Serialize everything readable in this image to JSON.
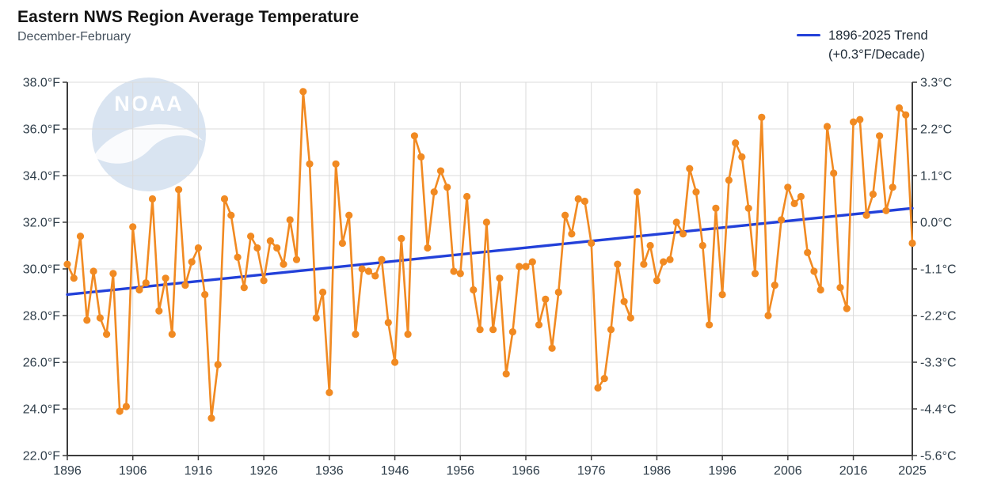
{
  "header": {
    "title": "Eastern NWS Region Average Temperature",
    "subtitle": "December-February"
  },
  "legend": {
    "line1": "1896-2025 Trend",
    "line2": "(+0.3°F/Decade)"
  },
  "watermark": {
    "text": "NOAA",
    "circle_color": "#D9E4F1",
    "mark_color": "#FFFFFF"
  },
  "colors": {
    "series_orange": "#F18A22",
    "trend_blue": "#2240D9",
    "gridline": "#DBDBDB",
    "axis": "#3C3C3C",
    "tick_label": "#2E3D49",
    "background": "#FFFFFF"
  },
  "chart_data": {
    "type": "line",
    "title": "Eastern NWS Region Average Temperature",
    "subtitle": "December-February",
    "grid": true,
    "legend_position": "top-right",
    "y_axis_left": {
      "unit": "°F",
      "min": 22.0,
      "max": 38.0,
      "tick_step": 2.0,
      "ticks": [
        {
          "f": 38,
          "label": "38.0°F"
        },
        {
          "f": 36,
          "label": "36.0°F"
        },
        {
          "f": 34,
          "label": "34.0°F"
        },
        {
          "f": 32,
          "label": "32.0°F"
        },
        {
          "f": 30,
          "label": "30.0°F"
        },
        {
          "f": 28,
          "label": "28.0°F"
        },
        {
          "f": 26,
          "label": "26.0°F"
        },
        {
          "f": 24,
          "label": "24.0°F"
        },
        {
          "f": 22,
          "label": "22.0°F"
        }
      ]
    },
    "y_axis_right": {
      "unit": "°C",
      "ticks": [
        {
          "f": 38,
          "label": "3.3°C"
        },
        {
          "f": 36,
          "label": "2.2°C"
        },
        {
          "f": 34,
          "label": "1.1°C"
        },
        {
          "f": 32,
          "label": "0.0°C"
        },
        {
          "f": 30,
          "label": "-1.1°C"
        },
        {
          "f": 28,
          "label": "-2.2°C"
        },
        {
          "f": 26,
          "label": "-3.3°C"
        },
        {
          "f": 24,
          "label": "-4.4°C"
        },
        {
          "f": 22,
          "label": "-5.6°C"
        }
      ]
    },
    "x_axis": {
      "min": 1896,
      "max": 2025,
      "ticks": [
        1896,
        1906,
        1916,
        1926,
        1936,
        1946,
        1956,
        1966,
        1976,
        1986,
        1996,
        2006,
        2016,
        2025
      ]
    },
    "series": {
      "name": "Average Temperature (°F)",
      "color": "#F18A22",
      "start_year": 1896,
      "end_year": 2025,
      "values": [
        30.2,
        29.6,
        31.4,
        27.8,
        29.9,
        27.9,
        27.2,
        29.8,
        23.9,
        24.1,
        31.8,
        29.1,
        29.4,
        33.0,
        28.2,
        29.6,
        27.2,
        33.4,
        29.3,
        30.3,
        30.9,
        28.9,
        23.6,
        25.9,
        33.0,
        32.3,
        30.5,
        29.2,
        31.4,
        30.9,
        29.5,
        31.2,
        30.9,
        30.2,
        32.1,
        30.4,
        37.6,
        34.5,
        27.9,
        29.0,
        24.7,
        34.5,
        31.1,
        32.3,
        27.2,
        30.0,
        29.9,
        29.7,
        30.4,
        27.7,
        26.0,
        31.3,
        27.2,
        35.7,
        34.8,
        30.9,
        33.3,
        34.2,
        33.5,
        29.9,
        29.8,
        33.1,
        29.1,
        27.4,
        32.0,
        27.4,
        29.6,
        25.5,
        27.3,
        30.1,
        30.1,
        30.3,
        27.6,
        28.7,
        26.6,
        29.0,
        32.3,
        31.5,
        33.0,
        32.9,
        31.1,
        24.9,
        25.3,
        27.4,
        30.2,
        28.6,
        27.9,
        33.3,
        30.2,
        31.0,
        29.5,
        30.3,
        30.4,
        32.0,
        31.5,
        34.3,
        33.3,
        31.0,
        27.6,
        32.6,
        28.9,
        33.8,
        35.4,
        34.8,
        32.6,
        29.8,
        36.5,
        28.0,
        29.3,
        32.1,
        33.5,
        32.8,
        33.1,
        30.7,
        29.9,
        29.1,
        36.1,
        34.1,
        29.2,
        28.3,
        36.3,
        36.4,
        32.3,
        33.2,
        35.7,
        32.5,
        33.5,
        36.9,
        36.6,
        31.1
      ]
    },
    "trend": {
      "name": "1896-2025 Trend",
      "rate_label": "(+0.3°F/Decade)",
      "rate_f_per_decade": 0.3,
      "color": "#2240D9",
      "start": {
        "year": 1896,
        "value_f": 28.9
      },
      "end": {
        "year": 2025,
        "value_f": 32.6
      }
    }
  }
}
